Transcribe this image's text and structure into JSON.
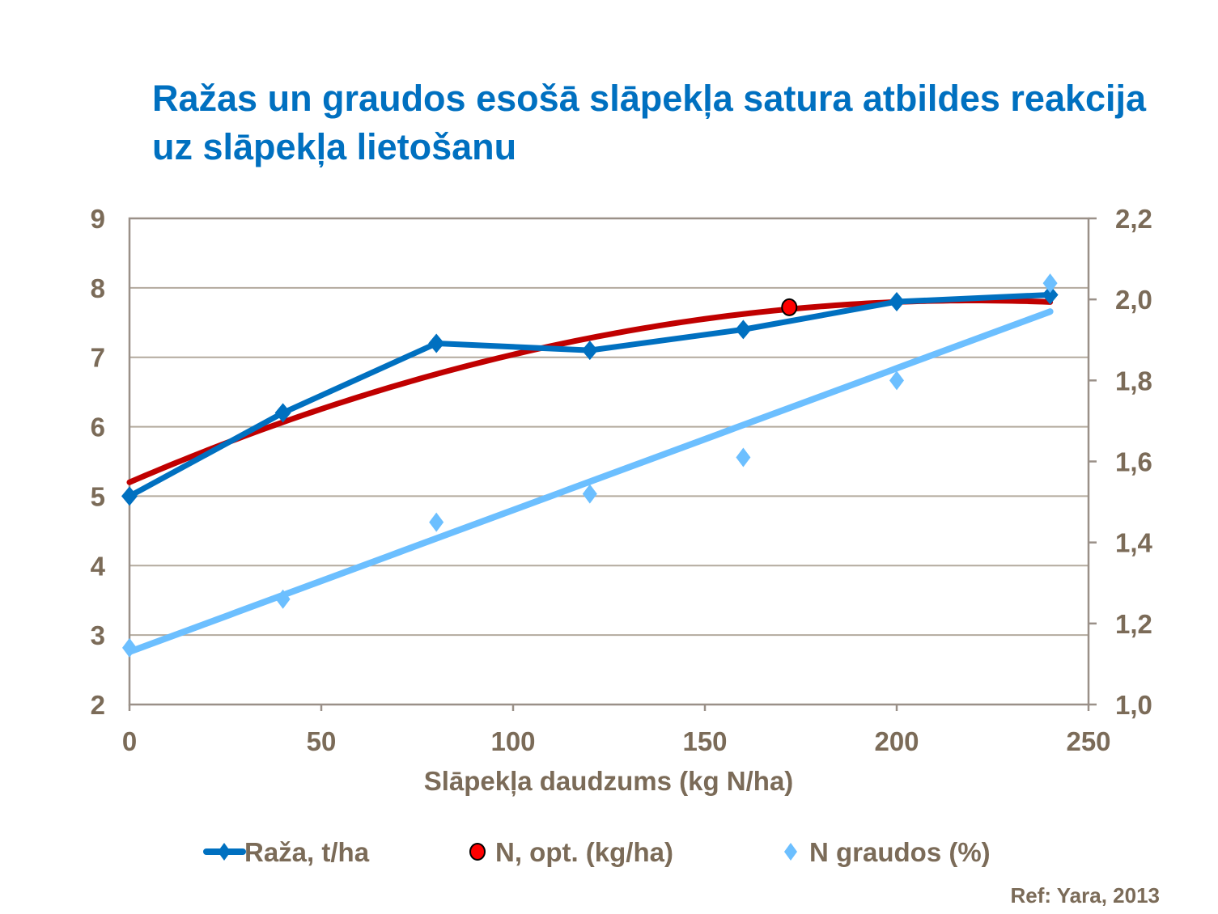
{
  "title": "Ražas un graudos esošā slāpekļa satura atbildes reakcija uz slāpekļa lietošanu",
  "reference": "Ref: Yara, 2013",
  "chart_data": {
    "type": "line",
    "title": "Ražas un graudos esošā slāpekļa satura atbildes reakcija uz slāpekļa lietošanu",
    "xlabel": "Slāpekļa daudzums (kg N/ha)",
    "xlim": [
      0,
      250
    ],
    "xticks": [
      "0",
      "50",
      "100",
      "150",
      "200",
      "250"
    ],
    "xtick_values": [
      0,
      50,
      100,
      150,
      200,
      250
    ],
    "ylim_left": [
      2,
      9
    ],
    "yticks_left": [
      "2",
      "3",
      "4",
      "5",
      "6",
      "7",
      "8",
      "9"
    ],
    "ylim_right": [
      1.0,
      2.2
    ],
    "yticks_right": [
      "1,0",
      "1,2",
      "1,4",
      "1,6",
      "1,8",
      "2,0",
      "2,2"
    ],
    "grid": true,
    "legend_position": "bottom",
    "series": [
      {
        "name": "Raža, t/ha",
        "axis": "left",
        "style": "line-diamond",
        "color": "#0070C0",
        "x": [
          0,
          40,
          80,
          120,
          160,
          200,
          240
        ],
        "y": [
          5.0,
          6.2,
          7.2,
          7.1,
          7.4,
          7.8,
          7.9
        ]
      },
      {
        "name": "N, opt. (kg/ha)",
        "axis": "left",
        "style": "marker-circle",
        "color": "#FF0000",
        "x": [
          172
        ],
        "y": [
          7.72
        ]
      },
      {
        "name": "N graudos (%)",
        "axis": "right",
        "style": "marker-diamond",
        "color": "#6CBFFF",
        "x": [
          0,
          40,
          80,
          120,
          160,
          200,
          240
        ],
        "y": [
          1.14,
          1.26,
          1.45,
          1.52,
          1.61,
          1.8,
          2.04
        ]
      }
    ],
    "trendlines": [
      {
        "of": "Raža, t/ha",
        "kind": "polynomial-2",
        "color": "#C00000",
        "coefficients": [
          5.2,
          0.0238,
          -5.41e-05
        ],
        "x_range": [
          0,
          240
        ]
      },
      {
        "of": "N graudos (%)",
        "kind": "linear",
        "color": "#6CBFFF",
        "coefficients": [
          1.13,
          0.0035
        ],
        "x_range": [
          0,
          240
        ]
      }
    ]
  }
}
